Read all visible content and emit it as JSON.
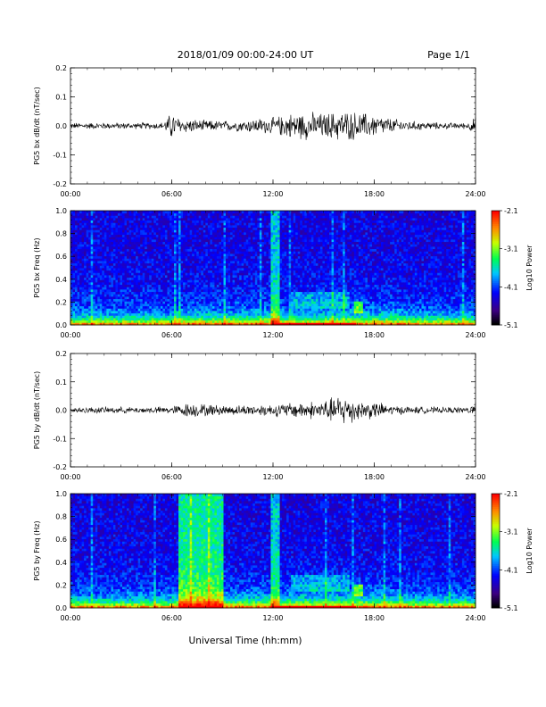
{
  "header": {
    "title": "2018/01/09  00:00-24:00 UT",
    "page": "Page 1/1"
  },
  "xlabel": "Universal Time (hh:mm)",
  "chart_data": [
    {
      "type": "line",
      "ylabel": "PG5 bx dB/dt (nT/sec)",
      "xlim": [
        "00:00",
        "24:00"
      ],
      "ylim": [
        -0.2,
        0.2
      ],
      "xticks": [
        "00:00",
        "06:00",
        "12:00",
        "18:00",
        "24:00"
      ],
      "yticks": [
        "-0.2",
        "-0.1",
        "0.0",
        "0.1",
        "0.2"
      ],
      "envelope": {
        "x_hours": [
          0,
          2,
          4,
          5.5,
          6,
          6.5,
          8,
          9,
          10,
          11,
          12,
          13,
          14,
          15,
          16,
          17,
          18,
          19,
          20,
          22,
          23.5,
          24
        ],
        "amplitude": [
          0.012,
          0.013,
          0.012,
          0.014,
          0.055,
          0.03,
          0.022,
          0.02,
          0.022,
          0.03,
          0.032,
          0.05,
          0.055,
          0.05,
          0.06,
          0.055,
          0.045,
          0.03,
          0.02,
          0.012,
          0.012,
          0.035
        ]
      },
      "color": "#000000"
    },
    {
      "type": "heatmap",
      "ylabel": "PG5 bx Freq (Hz)",
      "xlim": [
        "00:00",
        "24:00"
      ],
      "ylim": [
        0.0,
        1.0
      ],
      "xticks": [
        "00:00",
        "06:00",
        "12:00",
        "18:00",
        "24:00"
      ],
      "yticks": [
        "0.0",
        "0.2",
        "0.4",
        "0.6",
        "0.8",
        "1.0"
      ],
      "colorbar": {
        "label": "Log10 Power",
        "range": [
          -5.1,
          -2.1
        ],
        "ticks": [
          "-2.1",
          "-3.1",
          "-4.1",
          "-5.1"
        ]
      }
    },
    {
      "type": "line",
      "ylabel": "PG5 by dB/dt (nT/sec)",
      "xlim": [
        "00:00",
        "24:00"
      ],
      "ylim": [
        -0.2,
        0.2
      ],
      "xticks": [
        "00:00",
        "06:00",
        "12:00",
        "18:00",
        "24:00"
      ],
      "yticks": [
        "-0.2",
        "-0.1",
        "0.0",
        "0.1",
        "0.2"
      ],
      "envelope": {
        "x_hours": [
          0,
          2,
          4,
          6,
          7,
          8,
          9,
          10,
          11,
          12,
          13,
          14,
          15,
          16,
          16.5,
          17,
          18,
          19,
          20,
          22,
          23.5,
          24
        ],
        "amplitude": [
          0.012,
          0.013,
          0.012,
          0.015,
          0.03,
          0.025,
          0.02,
          0.02,
          0.022,
          0.025,
          0.03,
          0.035,
          0.04,
          0.06,
          0.065,
          0.04,
          0.035,
          0.02,
          0.015,
          0.012,
          0.012,
          0.03
        ]
      },
      "color": "#000000"
    },
    {
      "type": "heatmap",
      "ylabel": "PG5 by Freq (Hz)",
      "xlim": [
        "00:00",
        "24:00"
      ],
      "ylim": [
        0.0,
        1.0
      ],
      "xticks": [
        "00:00",
        "06:00",
        "12:00",
        "18:00",
        "24:00"
      ],
      "yticks": [
        "0.0",
        "0.2",
        "0.4",
        "0.6",
        "0.8",
        "1.0"
      ],
      "colorbar": {
        "label": "Log10 Power",
        "range": [
          -5.1,
          -2.1
        ],
        "ticks": [
          "-2.1",
          "-3.1",
          "-4.1",
          "-5.1"
        ]
      }
    }
  ]
}
